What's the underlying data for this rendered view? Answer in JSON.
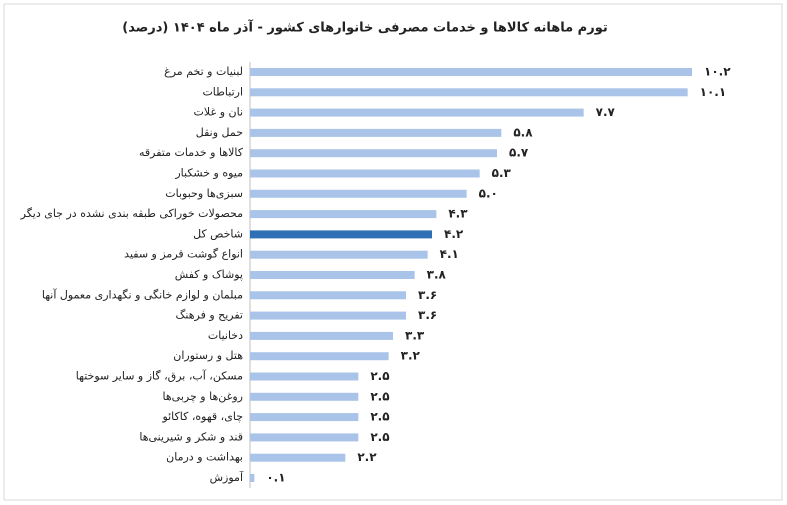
{
  "chart_data": {
    "type": "bar",
    "orientation": "horizontal",
    "title": "تورم ماهانه کالاها و خدمات مصرفی خانوارهای کشور - آذر ماه ۱۴۰۴ (درصد)",
    "categories": [
      "لبنیات و تخم مرغ",
      "ارتباطات",
      "نان و غلات",
      "حمل ونقل",
      "کالاها و خدمات متفرقه",
      "میوه و خشکبار",
      "سبزی‌ها وحبوبات",
      "محصولات خوراکی طبقه بندی نشده در جای دیگر",
      "شاخص کل",
      "انواع گوشت قرمز و سفید",
      "پوشاک و کفش",
      "مبلمان و لوازم خانگی و نگهداری معمول آنها",
      "تفریح و فرهنگ",
      "دخانیات",
      "هتل و رستوران",
      "مسکن، آب، برق، گاز و سایر سوختها",
      "روغن‌ها و چربی‌ها",
      "چای، قهوه، کاکائو",
      "قند و شکر و شیرینی‌ها",
      "بهداشت و درمان",
      "آموزش"
    ],
    "values": [
      10.2,
      10.1,
      7.7,
      5.8,
      5.7,
      5.3,
      5.0,
      4.3,
      4.2,
      4.1,
      3.8,
      3.6,
      3.6,
      3.3,
      3.2,
      2.5,
      2.5,
      2.5,
      2.5,
      2.2,
      0.1
    ],
    "value_labels": [
      "۱۰.۲",
      "۱۰.۱",
      "۷.۷",
      "۵.۸",
      "۵.۷",
      "۵.۳",
      "۵.۰",
      "۴.۳",
      "۴.۲",
      "۴.۱",
      "۳.۸",
      "۳.۶",
      "۳.۶",
      "۳.۳",
      "۳.۲",
      "۲.۵",
      "۲.۵",
      "۲.۵",
      "۲.۵",
      "۲.۲",
      "۰.۱"
    ],
    "colors": [
      "#a9c4e8",
      "#a9c4e8",
      "#a9c4e8",
      "#a9c4e8",
      "#a9c4e8",
      "#a9c4e8",
      "#a9c4e8",
      "#a9c4e8",
      "#2e6fb5",
      "#a9c4e8",
      "#a9c4e8",
      "#a9c4e8",
      "#a9c4e8",
      "#a9c4e8",
      "#a9c4e8",
      "#a9c4e8",
      "#a9c4e8",
      "#a9c4e8",
      "#a9c4e8",
      "#a9c4e8",
      "#a9c4e8"
    ]
  }
}
